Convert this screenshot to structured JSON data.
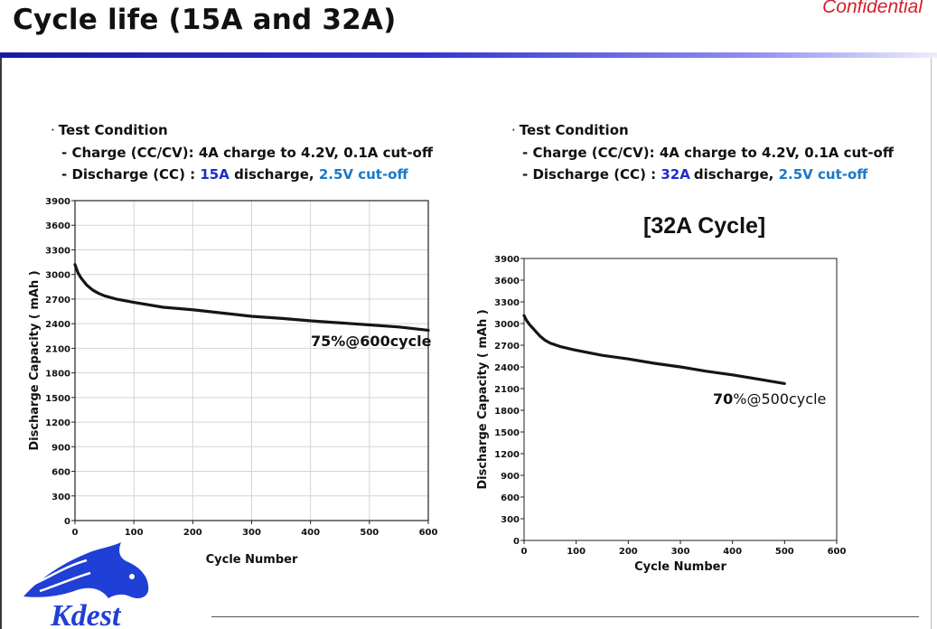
{
  "slide": {
    "title": "Cycle life (15A and 32A)",
    "confidential": "Confidential",
    "accent_color": "#1a1aa6",
    "logo_text": "Kdest"
  },
  "left": {
    "bullet": "·",
    "heading": "Test Condition",
    "charge_line": "- Charge (CC/CV): 4A charge to 4.2V, 0.1A cut-off",
    "discharge_prefix": "- Discharge (CC) : ",
    "discharge_current": "15A",
    "discharge_mid": " discharge, ",
    "discharge_cutoff": "2.5V cut-off",
    "annotation_bold": "75",
    "annotation_rest": "%@600cycle"
  },
  "right": {
    "bullet": "·",
    "heading": "Test Condition",
    "charge_line": "- Charge (CC/CV): 4A charge to 4.2V, 0.1A cut-off",
    "discharge_prefix": "- Discharge (CC) : ",
    "discharge_current": "32A",
    "discharge_mid": "discharge, ",
    "discharge_cutoff": "2.5V cut-off",
    "chart_title": "[32A Cycle]",
    "annotation_bold": "70",
    "annotation_rest": "%@500cycle"
  },
  "chart_data": [
    {
      "type": "line",
      "title": "",
      "xlabel": "Cycle Number",
      "ylabel": "Discharge Capacity ( mAh )",
      "xlim": [
        0,
        600
      ],
      "ylim": [
        0,
        3900
      ],
      "xticks": [
        0,
        100,
        200,
        300,
        400,
        500,
        600
      ],
      "yticks": [
        0,
        300,
        600,
        900,
        1200,
        1500,
        1800,
        2100,
        2400,
        2700,
        3000,
        3300,
        3600,
        3900
      ],
      "grid": true,
      "series": [
        {
          "name": "15A discharge",
          "x": [
            0,
            5,
            10,
            20,
            30,
            40,
            50,
            70,
            100,
            150,
            200,
            250,
            300,
            350,
            400,
            450,
            500,
            550,
            600
          ],
          "y": [
            3120,
            3020,
            2960,
            2870,
            2810,
            2770,
            2740,
            2700,
            2660,
            2600,
            2570,
            2530,
            2490,
            2465,
            2435,
            2410,
            2385,
            2360,
            2320
          ]
        }
      ]
    },
    {
      "type": "line",
      "title": "[32A Cycle]",
      "xlabel": "Cycle Number",
      "ylabel": "Discharge Capacity ( mAh )",
      "xlim": [
        0,
        600
      ],
      "ylim": [
        0,
        3900
      ],
      "xticks": [
        0,
        100,
        200,
        300,
        400,
        500,
        600
      ],
      "yticks": [
        0,
        300,
        600,
        900,
        1200,
        1500,
        1800,
        2100,
        2400,
        2700,
        3000,
        3300,
        3600,
        3900
      ],
      "grid": false,
      "series": [
        {
          "name": "32A discharge",
          "x": [
            0,
            5,
            10,
            20,
            30,
            40,
            50,
            70,
            100,
            150,
            200,
            250,
            300,
            350,
            400,
            450,
            500
          ],
          "y": [
            3110,
            3040,
            2990,
            2910,
            2830,
            2770,
            2730,
            2680,
            2630,
            2560,
            2510,
            2450,
            2400,
            2340,
            2290,
            2230,
            2170
          ]
        }
      ]
    }
  ]
}
